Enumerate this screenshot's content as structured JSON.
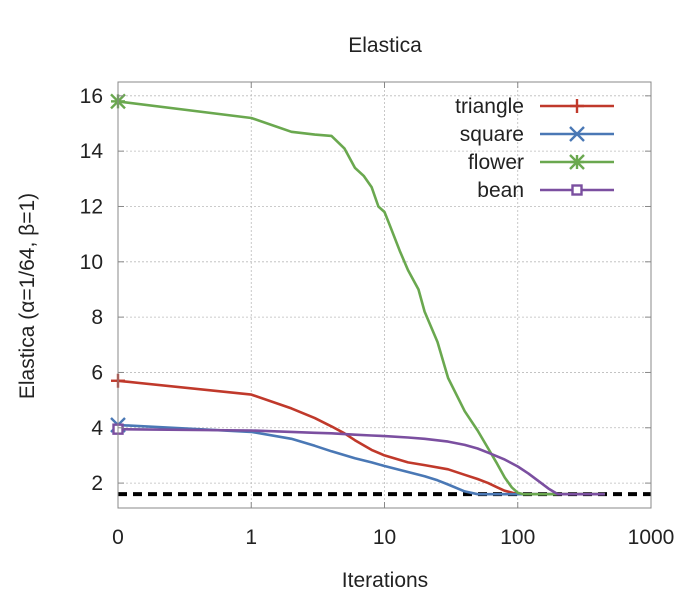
{
  "chart_data": {
    "type": "line",
    "title": "Elastica",
    "xlabel": "Iterations",
    "ylabel": "Elastica (α=1/64, β=1)",
    "x_scale": "symlog",
    "xlim": [
      0,
      1000
    ],
    "ylim": [
      1.1,
      16.5
    ],
    "x_ticks": [
      0,
      1,
      10,
      100,
      1000
    ],
    "x_tick_labels": [
      "0",
      "1",
      "10",
      "100",
      "1000"
    ],
    "y_ticks": [
      2,
      4,
      6,
      8,
      10,
      12,
      14,
      16
    ],
    "y_tick_labels": [
      "2",
      "4",
      "6",
      "8",
      "10",
      "12",
      "14",
      "16"
    ],
    "grid": true,
    "legend_position": "top-right",
    "reference_line": {
      "y": 1.6,
      "style": "dashed",
      "color": "#000000"
    },
    "series": [
      {
        "name": "triangle",
        "color": "#c0392b",
        "marker": "plus",
        "x": [
          0,
          1,
          2,
          3,
          4,
          5,
          6,
          8,
          10,
          15,
          20,
          30,
          40,
          50,
          60,
          70,
          80,
          100,
          150,
          200,
          300,
          450
        ],
        "y": [
          5.7,
          5.2,
          4.7,
          4.35,
          4.05,
          3.8,
          3.55,
          3.2,
          3.0,
          2.75,
          2.65,
          2.5,
          2.3,
          2.15,
          2.0,
          1.85,
          1.72,
          1.6,
          1.6,
          1.6,
          1.6,
          1.6
        ]
      },
      {
        "name": "square",
        "color": "#4a78b5",
        "marker": "x",
        "x": [
          0,
          1,
          2,
          3,
          4,
          6,
          8,
          10,
          15,
          20,
          25,
          30,
          40,
          50,
          70,
          100,
          200,
          450
        ],
        "y": [
          4.1,
          3.85,
          3.6,
          3.35,
          3.15,
          2.9,
          2.75,
          2.62,
          2.4,
          2.25,
          2.1,
          1.95,
          1.7,
          1.6,
          1.6,
          1.6,
          1.6,
          1.6
        ]
      },
      {
        "name": "flower",
        "color": "#6aa84f",
        "marker": "star",
        "x": [
          0,
          1,
          2,
          3,
          4,
          5,
          6,
          7,
          8,
          9,
          10,
          11,
          13,
          15,
          18,
          20,
          25,
          30,
          40,
          50,
          60,
          70,
          80,
          90,
          100,
          110,
          150,
          200,
          300,
          450
        ],
        "y": [
          15.8,
          15.2,
          14.7,
          14.6,
          14.55,
          14.1,
          13.4,
          13.1,
          12.7,
          12.0,
          11.8,
          11.3,
          10.4,
          9.7,
          9.0,
          8.2,
          7.1,
          5.8,
          4.6,
          3.9,
          3.25,
          2.7,
          2.2,
          1.85,
          1.65,
          1.6,
          1.6,
          1.6,
          1.6,
          1.6
        ]
      },
      {
        "name": "bean",
        "color": "#7b4fa0",
        "marker": "square",
        "x": [
          0,
          1,
          2,
          3,
          4,
          6,
          8,
          10,
          15,
          20,
          30,
          40,
          50,
          60,
          80,
          100,
          120,
          150,
          170,
          200,
          300,
          450
        ],
        "y": [
          3.95,
          3.9,
          3.85,
          3.82,
          3.8,
          3.75,
          3.72,
          3.7,
          3.65,
          3.6,
          3.5,
          3.38,
          3.25,
          3.1,
          2.85,
          2.6,
          2.35,
          2.0,
          1.8,
          1.6,
          1.6,
          1.6
        ]
      }
    ]
  }
}
